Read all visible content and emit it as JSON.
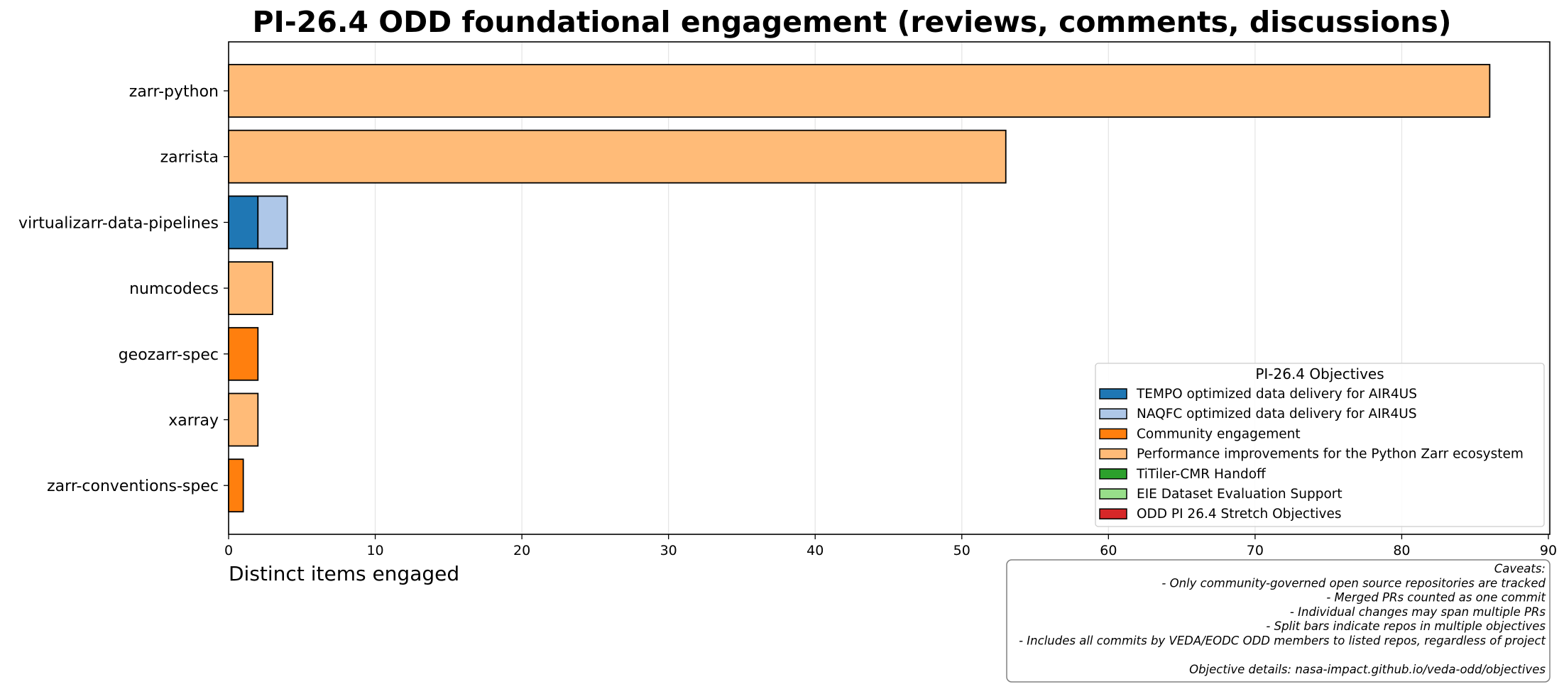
{
  "chart_data": {
    "type": "bar",
    "orientation": "horizontal",
    "stacked": true,
    "title": "PI-26.4 ODD foundational engagement (reviews, comments, discussions)",
    "xlabel": "Distinct items engaged",
    "ylabel": "",
    "xlim": [
      0,
      90
    ],
    "x_ticks": [
      "0",
      "10",
      "20",
      "30",
      "40",
      "50",
      "60",
      "70",
      "80",
      "90"
    ],
    "grid": "vertical",
    "categories": [
      "zarr-python",
      "zarrista",
      "virtualizarr-data-pipelines",
      "numcodecs",
      "geozarr-spec",
      "xarray",
      "zarr-conventions-spec"
    ],
    "series": [
      {
        "name": "TEMPO optimized data delivery for AIR4US",
        "color": "#1f77b4",
        "values": [
          0,
          0,
          2,
          0,
          0,
          0,
          0
        ]
      },
      {
        "name": "NAQFC optimized data delivery for AIR4US",
        "color": "#aec7e8",
        "values": [
          0,
          0,
          2,
          0,
          0,
          0,
          0
        ]
      },
      {
        "name": "Community engagement",
        "color": "#ff7f0e",
        "values": [
          0,
          0,
          0,
          0,
          2,
          0,
          1
        ]
      },
      {
        "name": "Performance improvements for the Python Zarr ecosystem",
        "color": "#ffbb78",
        "values": [
          86,
          53,
          0,
          3,
          0,
          2,
          0
        ]
      },
      {
        "name": "TiTiler-CMR Handoff",
        "color": "#2ca02c",
        "values": [
          0,
          0,
          0,
          0,
          0,
          0,
          0
        ]
      },
      {
        "name": "EIE Dataset Evaluation Support",
        "color": "#98df8a",
        "values": [
          0,
          0,
          0,
          0,
          0,
          0,
          0
        ]
      },
      {
        "name": "ODD PI 26.4 Stretch Objectives",
        "color": "#d62728",
        "values": [
          0,
          0,
          0,
          0,
          0,
          0,
          0
        ]
      }
    ],
    "legend": {
      "title": "PI-26.4 Objectives",
      "placement": "lower-right"
    },
    "caveats": [
      "Caveats:",
      "- Only community-governed open source repositories are tracked",
      "- Merged PRs counted as one commit",
      "- Individual changes may span multiple PRs",
      "- Split bars indicate repos in multiple objectives",
      "- Includes all commits by VEDA/EODC ODD members to listed repos, regardless of project",
      "",
      "Objective details: nasa-impact.github.io/veda-odd/objectives"
    ]
  }
}
